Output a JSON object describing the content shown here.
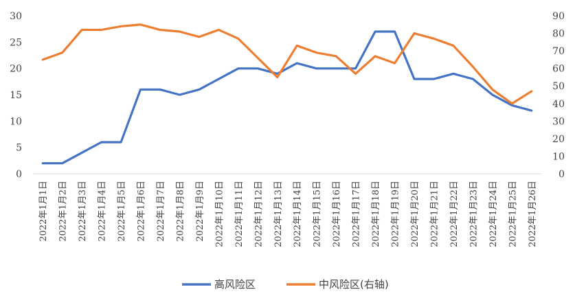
{
  "chart_data": {
    "type": "line",
    "categories": [
      "2022年1月1日",
      "2022年1月2日",
      "2022年1月3日",
      "2022年1月4日",
      "2022年1月5日",
      "2022年1月6日",
      "2022年1月7日",
      "2022年1月8日",
      "2022年1月9日",
      "2022年1月10日",
      "2022年1月11日",
      "2022年1月12日",
      "2022年1月13日",
      "2022年1月14日",
      "2022年1月15日",
      "2022年1月16日",
      "2022年1月17日",
      "2022年1月18日",
      "2022年1月19日",
      "2022年1月20日",
      "2022年1月21日",
      "2022年1月22日",
      "2022年1月23日",
      "2022年1月24日",
      "2022年1月25日",
      "2022年1月26日"
    ],
    "series": [
      {
        "name": "高风险区",
        "axis": "left",
        "color": "#4472c4",
        "values": [
          2,
          2,
          4,
          6,
          6,
          16,
          16,
          15,
          16,
          18,
          20,
          20,
          19,
          21,
          20,
          20,
          20,
          27,
          27,
          18,
          18,
          19,
          18,
          15,
          13,
          12
        ]
      },
      {
        "name": "中风险区(右轴)",
        "axis": "right",
        "color": "#ed7d31",
        "values": [
          65,
          69,
          82,
          82,
          84,
          85,
          82,
          81,
          78,
          82,
          77,
          66,
          55,
          73,
          69,
          67,
          57,
          67,
          63,
          80,
          77,
          73,
          61,
          48,
          40,
          47
        ]
      }
    ],
    "ylim_left": [
      0,
      30
    ],
    "yticks_left": [
      0,
      5,
      10,
      15,
      20,
      25,
      30
    ],
    "ylim_right": [
      0,
      90
    ],
    "yticks_right": [
      0,
      10,
      20,
      30,
      40,
      50,
      60,
      70,
      80,
      90
    ],
    "grid": false,
    "legend_position": "bottom"
  }
}
